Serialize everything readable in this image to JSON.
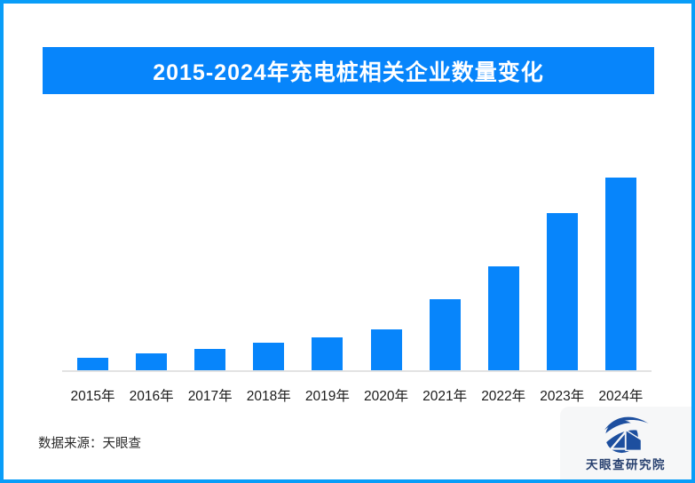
{
  "page": {
    "border_color": "#099df8",
    "background": "#ffffff"
  },
  "title_banner": {
    "text": "2015-2024年充电桩相关企业数量变化",
    "background": "#0785fb",
    "text_color": "#ffffff"
  },
  "chart_data": {
    "type": "bar",
    "title": "2015-2024年充电桩相关企业数量变化",
    "categories": [
      "2015年",
      "2016年",
      "2017年",
      "2018年",
      "2019年",
      "2020年",
      "2021年",
      "2022年",
      "2023年",
      "2024年"
    ],
    "values": [
      14,
      19,
      24,
      31,
      37,
      46,
      80,
      117,
      177,
      217
    ],
    "value_note": "no y-axis, gridlines or data labels are shown in the figure; values are relative bar heights estimated from pixels (2024 tallest = 217)",
    "bar_color": "#0785fb",
    "axis_line_color": "#e3e3e3",
    "xlabel": "",
    "ylabel": "",
    "ylim": [
      0,
      240
    ],
    "grid": false,
    "legend": false
  },
  "footer": {
    "source_text": "数据来源：天眼查",
    "logo_text": "天眼查研究院",
    "logo_color": "#1d4f9f",
    "logo_card_background": "#f6f7f8"
  }
}
